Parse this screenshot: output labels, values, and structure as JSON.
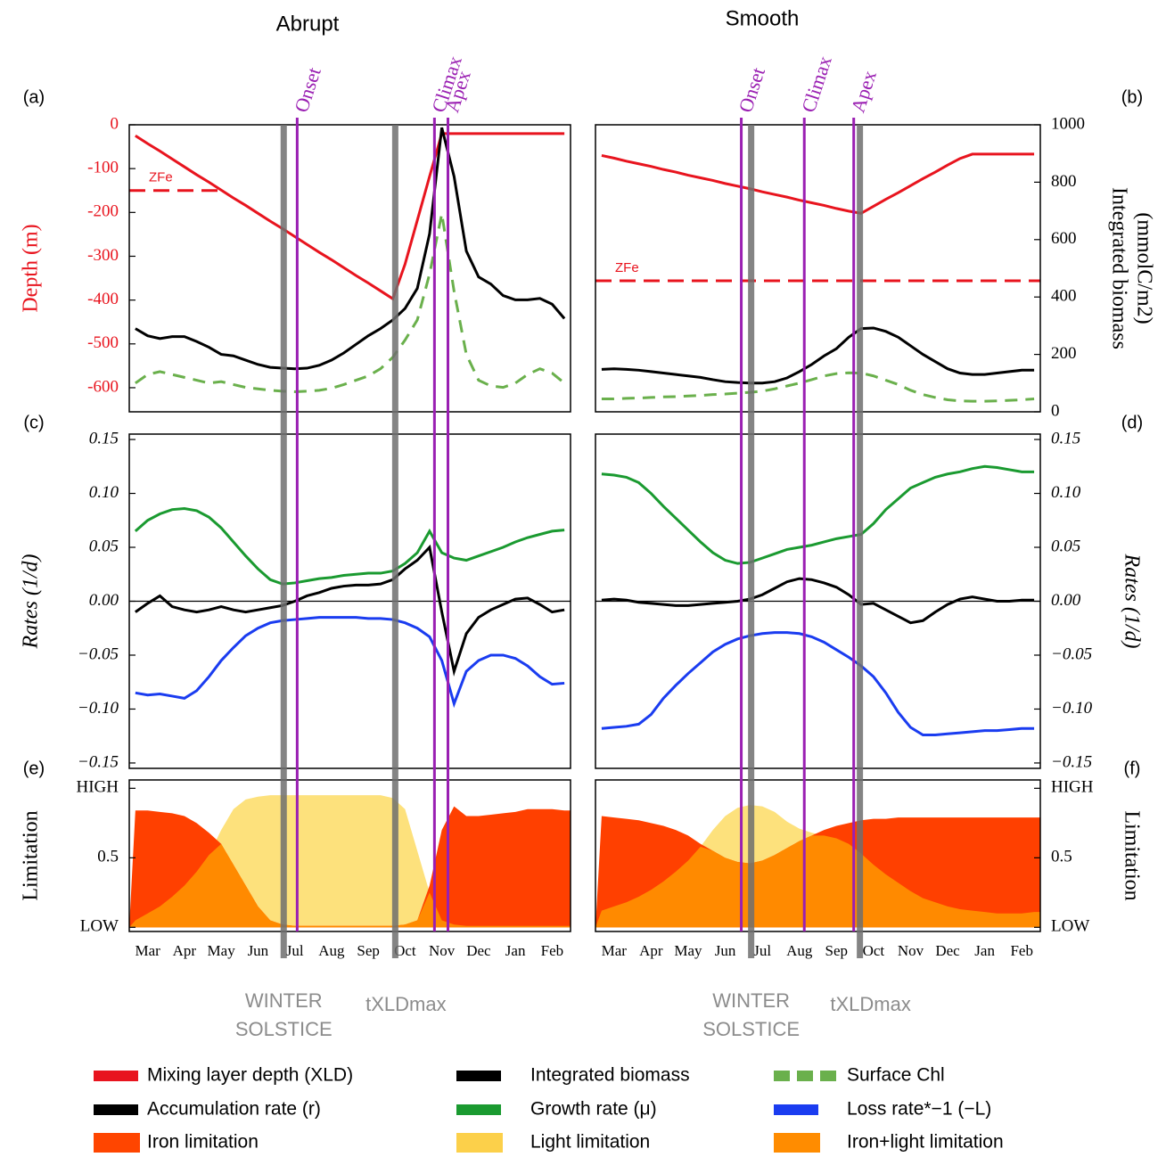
{
  "columns": [
    {
      "title": "Abrupt",
      "events": [
        {
          "label": "Onset",
          "x": 13.2
        },
        {
          "label": "Climax",
          "x": 24.4
        },
        {
          "label": "Apex",
          "x": 25.5
        }
      ],
      "markers": [
        {
          "label": [
            "WINTER",
            "SOLSTICE"
          ],
          "x": 12.1
        },
        {
          "label": [
            "tXLDmax"
          ],
          "x": 21.2
        }
      ]
    },
    {
      "title": "Smooth",
      "events": [
        {
          "label": "Onset",
          "x": 11.3
        },
        {
          "label": "Climax",
          "x": 16.4
        },
        {
          "label": "Apex",
          "x": 20.4
        }
      ],
      "markers": [
        {
          "label": [
            "WINTER",
            "SOLSTICE"
          ],
          "x": 12.1
        },
        {
          "label": [
            "tXLDmax"
          ],
          "x": 20.9
        }
      ]
    }
  ],
  "legend": [
    {
      "label": "Mixing layer depth (XLD)",
      "color": "#e8141e",
      "style": "solid"
    },
    {
      "label": "Integrated biomass",
      "color": "#000000",
      "style": "solid"
    },
    {
      "label": "Surface Chl",
      "color": "#6ab04c",
      "style": "dashed"
    },
    {
      "label": "Accumulation rate (r)",
      "color": "#000000",
      "style": "solid"
    },
    {
      "label": "Growth rate (μ)",
      "color": "#1a9a30",
      "style": "solid"
    },
    {
      "label": "Loss rate*−1 (−L)",
      "color": "#1a3cf0",
      "style": "solid"
    },
    {
      "label": "Iron limitation",
      "color": "#ff4500",
      "style": "area"
    },
    {
      "label": "Light limitation",
      "color": "#fcd04a",
      "style": "area"
    },
    {
      "label": "Iron+light limitation",
      "color": "#ff8c00",
      "style": "area"
    }
  ],
  "chart_data": [
    {
      "type": "line",
      "panel": "(a)",
      "ylabel": [
        "Depth (m)"
      ],
      "label_color": "#e8141e",
      "ylim": [
        -655,
        0
      ],
      "yticks": [
        0,
        -100,
        -200,
        -300,
        -400,
        -500,
        -600
      ],
      "y2lim": [
        0,
        1000
      ],
      "zfe": {
        "label": "ZFe",
        "value": -150,
        "to": 6.8,
        "color": "#e8141e"
      },
      "series": [
        {
          "color": "#e8141e",
          "style": "solid",
          "values": [
            -25,
            -43,
            -60,
            -78,
            -96,
            -114,
            -131,
            -149,
            -167,
            -184,
            -202,
            -220,
            -237,
            -255,
            -273,
            -291,
            -308,
            -326,
            -344,
            -361,
            -379,
            -397,
            -318,
            -218,
            -118,
            -20,
            -20,
            -20,
            -20,
            -20,
            -20,
            -20,
            -20,
            -20,
            -20,
            -20
          ]
        },
        {
          "color": "#000000",
          "style": "solid",
          "axis": "y2",
          "values": [
            290,
            265,
            255,
            262,
            262,
            245,
            225,
            200,
            195,
            180,
            165,
            155,
            152,
            150,
            152,
            162,
            180,
            205,
            235,
            265,
            290,
            320,
            360,
            430,
            620,
            990,
            820,
            560,
            470,
            445,
            405,
            390,
            390,
            395,
            375,
            325
          ]
        },
        {
          "color": "#6ab04c",
          "style": "dashed",
          "axis": "y2",
          "values": [
            100,
            130,
            140,
            130,
            120,
            110,
            100,
            105,
            95,
            85,
            80,
            75,
            72,
            70,
            72,
            75,
            82,
            95,
            110,
            125,
            150,
            190,
            250,
            320,
            480,
            690,
            420,
            200,
            110,
            90,
            85,
            100,
            130,
            150,
            135,
            100
          ]
        }
      ]
    },
    {
      "type": "line",
      "panel": "(b)",
      "y2label": [
        "Integrated biomass",
        "(mmolC/m2)"
      ],
      "ylim": [
        -655,
        0
      ],
      "y2lim": [
        0,
        1000
      ],
      "y2ticks": [
        0,
        200,
        400,
        600,
        800,
        1000
      ],
      "zfe": {
        "label": "ZFe",
        "value": -356,
        "to": 35.5,
        "color": "#e8141e"
      },
      "series": [
        {
          "color": "#e8141e",
          "style": "solid",
          "values": [
            -70,
            -76,
            -83,
            -89,
            -95,
            -102,
            -108,
            -115,
            -121,
            -127,
            -134,
            -140,
            -146,
            -153,
            -159,
            -165,
            -172,
            -178,
            -184,
            -191,
            -197,
            -202,
            -186,
            -170,
            -155,
            -139,
            -123,
            -108,
            -92,
            -77,
            -67,
            -67,
            -67,
            -67,
            -67,
            -67
          ]
        },
        {
          "color": "#000000",
          "style": "solid",
          "axis": "y2",
          "values": [
            148,
            150,
            148,
            145,
            140,
            135,
            130,
            125,
            120,
            112,
            105,
            102,
            100,
            100,
            105,
            118,
            140,
            165,
            195,
            220,
            260,
            290,
            292,
            280,
            260,
            230,
            200,
            175,
            150,
            135,
            130,
            130,
            135,
            140,
            145,
            145
          ]
        },
        {
          "color": "#6ab04c",
          "style": "dashed",
          "axis": "y2",
          "values": [
            45,
            45,
            47,
            48,
            50,
            52,
            53,
            55,
            57,
            60,
            62,
            65,
            68,
            72,
            80,
            90,
            100,
            112,
            125,
            133,
            136,
            135,
            125,
            110,
            95,
            75,
            60,
            50,
            42,
            38,
            37,
            37,
            38,
            40,
            42,
            45
          ]
        }
      ]
    },
    {
      "type": "line",
      "panel": "(c)",
      "ylabel": [
        "Rates (1/d)"
      ],
      "label_style": "italic",
      "zero_line": true,
      "ylim": [
        -0.155,
        0.155
      ],
      "yticks": [
        {
          "value": -0.15,
          "label": "−0.15"
        },
        {
          "value": -0.1,
          "label": "−0.10"
        },
        {
          "value": -0.05,
          "label": "−0.05"
        },
        {
          "value": 0,
          "label": "0.00"
        },
        0.05,
        {
          "value": 0.1,
          "label": "0.10"
        },
        0.15
      ],
      "series": [
        {
          "color": "#1a9a30",
          "style": "solid",
          "values": [
            0.065,
            0.075,
            0.081,
            0.085,
            0.086,
            0.084,
            0.078,
            0.068,
            0.055,
            0.042,
            0.03,
            0.02,
            0.016,
            0.017,
            0.019,
            0.021,
            0.022,
            0.024,
            0.025,
            0.026,
            0.026,
            0.028,
            0.035,
            0.045,
            0.065,
            0.045,
            0.04,
            0.038,
            0.042,
            0.046,
            0.05,
            0.055,
            0.059,
            0.062,
            0.065,
            0.066
          ]
        },
        {
          "color": "#000000",
          "style": "solid",
          "values": [
            -0.01,
            -0.002,
            0.005,
            -0.005,
            -0.008,
            -0.01,
            -0.008,
            -0.005,
            -0.008,
            -0.01,
            -0.008,
            -0.006,
            -0.004,
            0,
            0.005,
            0.008,
            0.012,
            0.014,
            0.015,
            0.015,
            0.016,
            0.02,
            0.03,
            0.038,
            0.05,
            -0.01,
            -0.065,
            -0.03,
            -0.015,
            -0.008,
            -0.003,
            0.002,
            0.003,
            -0.003,
            -0.01,
            -0.008
          ]
        },
        {
          "color": "#1a3cf0",
          "style": "solid",
          "values": [
            -0.085,
            -0.087,
            -0.086,
            -0.088,
            -0.09,
            -0.083,
            -0.07,
            -0.055,
            -0.043,
            -0.032,
            -0.025,
            -0.02,
            -0.018,
            -0.017,
            -0.016,
            -0.015,
            -0.015,
            -0.015,
            -0.015,
            -0.016,
            -0.016,
            -0.017,
            -0.02,
            -0.025,
            -0.033,
            -0.055,
            -0.095,
            -0.065,
            -0.055,
            -0.05,
            -0.05,
            -0.053,
            -0.06,
            -0.07,
            -0.077,
            -0.076
          ]
        }
      ]
    },
    {
      "type": "line",
      "panel": "(d)",
      "ylabel": [
        "Rates (1/d)"
      ],
      "label_style": "italic",
      "yaxis_side": "right",
      "zero_line": true,
      "ylim": [
        -0.155,
        0.155
      ],
      "yticks": [
        {
          "value": -0.15,
          "label": "−0.15"
        },
        {
          "value": -0.1,
          "label": "−0.10"
        },
        {
          "value": -0.05,
          "label": "−0.05"
        },
        {
          "value": 0,
          "label": "0.00"
        },
        0.05,
        {
          "value": 0.1,
          "label": "0.10"
        },
        0.15
      ],
      "series": [
        {
          "color": "#1a9a30",
          "style": "solid",
          "values": [
            0.118,
            0.117,
            0.115,
            0.11,
            0.1,
            0.088,
            0.077,
            0.066,
            0.055,
            0.045,
            0.038,
            0.035,
            0.036,
            0.04,
            0.044,
            0.048,
            0.05,
            0.052,
            0.055,
            0.058,
            0.06,
            0.062,
            0.072,
            0.085,
            0.095,
            0.105,
            0.11,
            0.115,
            0.118,
            0.12,
            0.123,
            0.125,
            0.124,
            0.122,
            0.12,
            0.12
          ]
        },
        {
          "color": "#000000",
          "style": "solid",
          "values": [
            0.001,
            0.002,
            0.001,
            -0.001,
            -0.002,
            -0.003,
            -0.004,
            -0.004,
            -0.003,
            -0.002,
            -0.001,
            0,
            0.002,
            0.006,
            0.012,
            0.018,
            0.021,
            0.02,
            0.017,
            0.013,
            0.006,
            -0.003,
            -0.002,
            -0.008,
            -0.014,
            -0.02,
            -0.018,
            -0.01,
            -0.003,
            0.002,
            0.004,
            0.002,
            0,
            0,
            0.001,
            0.001
          ]
        },
        {
          "color": "#1a3cf0",
          "style": "solid",
          "values": [
            -0.118,
            -0.117,
            -0.116,
            -0.114,
            -0.105,
            -0.09,
            -0.078,
            -0.067,
            -0.057,
            -0.047,
            -0.04,
            -0.035,
            -0.032,
            -0.03,
            -0.029,
            -0.029,
            -0.03,
            -0.033,
            -0.038,
            -0.045,
            -0.052,
            -0.06,
            -0.07,
            -0.085,
            -0.103,
            -0.117,
            -0.124,
            -0.124,
            -0.123,
            -0.122,
            -0.121,
            -0.12,
            -0.12,
            -0.119,
            -0.118,
            -0.118
          ]
        }
      ]
    },
    {
      "type": "area",
      "panel": "(e)",
      "ylabel": [
        "Limitation"
      ],
      "ylim": [
        -0.03,
        1.06
      ],
      "yticks": [
        {
          "value": 0,
          "label": "LOW"
        },
        0.5,
        {
          "value": 1,
          "label": "HIGH"
        }
      ],
      "categories": [
        null,
        "Mar",
        null,
        null,
        "Apr",
        null,
        null,
        "May",
        null,
        null,
        "Jun",
        null,
        null,
        "Jul",
        null,
        null,
        "Aug",
        null,
        null,
        "Sep",
        null,
        null,
        "Oct",
        null,
        null,
        "Nov",
        null,
        null,
        "Dec",
        null,
        null,
        "Jan",
        null,
        null,
        "Feb",
        null
      ],
      "series": [
        {
          "color": "#fde17c",
          "style": "area",
          "values": [
            0.05,
            0.1,
            0.15,
            0.22,
            0.3,
            0.4,
            0.52,
            0.7,
            0.85,
            0.92,
            0.94,
            0.95,
            0.95,
            0.95,
            0.95,
            0.95,
            0.95,
            0.95,
            0.95,
            0.95,
            0.95,
            0.93,
            0.85,
            0.55,
            0.25,
            0.05,
            0.02,
            0.01,
            0.01,
            0.01,
            0.01,
            0.01,
            0.01,
            0.01,
            0.01,
            0.01
          ]
        },
        {
          "color": "#ff4000",
          "style": "area",
          "values": [
            0.84,
            0.84,
            0.83,
            0.82,
            0.8,
            0.75,
            0.68,
            0.6,
            0.45,
            0.3,
            0.15,
            0.05,
            0.02,
            0.01,
            0.01,
            0.01,
            0.01,
            0.01,
            0.01,
            0.01,
            0.01,
            0.01,
            0.02,
            0.05,
            0.3,
            0.7,
            0.87,
            0.8,
            0.8,
            0.81,
            0.82,
            0.83,
            0.85,
            0.85,
            0.85,
            0.84
          ]
        },
        {
          "color": "#ff8a00",
          "style": "area",
          "values": [
            0.05,
            0.1,
            0.15,
            0.22,
            0.3,
            0.4,
            0.52,
            0.6,
            0.45,
            0.3,
            0.15,
            0.05,
            0.02,
            0.01,
            0.01,
            0.01,
            0.01,
            0.01,
            0.01,
            0.01,
            0.01,
            0.01,
            0.02,
            0.05,
            0.25,
            0.05,
            0.02,
            0.01,
            0.01,
            0.01,
            0.01,
            0.01,
            0.01,
            0.01,
            0.01,
            0.01
          ]
        }
      ]
    },
    {
      "type": "area",
      "panel": "(f)",
      "ylabel": [
        "Limitation"
      ],
      "yaxis_side": "right",
      "ylim": [
        -0.03,
        1.06
      ],
      "yticks": [
        {
          "value": 0,
          "label": "LOW"
        },
        0.5,
        {
          "value": 1,
          "label": "HIGH"
        }
      ],
      "categories": [
        null,
        "Mar",
        null,
        null,
        "Apr",
        null,
        null,
        "May",
        null,
        null,
        "Jun",
        null,
        null,
        "Jul",
        null,
        null,
        "Aug",
        null,
        null,
        "Sep",
        null,
        null,
        "Oct",
        null,
        null,
        "Nov",
        null,
        null,
        "Dec",
        null,
        null,
        "Jan",
        null,
        null,
        "Feb",
        null
      ],
      "series": [
        {
          "color": "#fde17c",
          "style": "area",
          "values": [
            0.12,
            0.15,
            0.18,
            0.22,
            0.27,
            0.33,
            0.4,
            0.48,
            0.58,
            0.7,
            0.8,
            0.86,
            0.88,
            0.87,
            0.83,
            0.76,
            0.71,
            0.68,
            0.66,
            0.64,
            0.6,
            0.53,
            0.45,
            0.38,
            0.32,
            0.26,
            0.21,
            0.18,
            0.15,
            0.13,
            0.12,
            0.11,
            0.1,
            0.1,
            0.1,
            0.11
          ]
        },
        {
          "color": "#ff4000",
          "style": "area",
          "values": [
            0.8,
            0.79,
            0.78,
            0.77,
            0.75,
            0.73,
            0.7,
            0.66,
            0.6,
            0.55,
            0.5,
            0.47,
            0.46,
            0.48,
            0.52,
            0.57,
            0.62,
            0.66,
            0.7,
            0.73,
            0.75,
            0.77,
            0.78,
            0.78,
            0.79,
            0.79,
            0.79,
            0.79,
            0.79,
            0.79,
            0.79,
            0.79,
            0.79,
            0.79,
            0.79,
            0.79
          ]
        },
        {
          "color": "#ff8a00",
          "style": "area",
          "values": [
            0.12,
            0.15,
            0.18,
            0.22,
            0.27,
            0.33,
            0.4,
            0.48,
            0.58,
            0.55,
            0.5,
            0.47,
            0.46,
            0.48,
            0.52,
            0.57,
            0.62,
            0.66,
            0.66,
            0.64,
            0.6,
            0.53,
            0.45,
            0.38,
            0.32,
            0.26,
            0.21,
            0.18,
            0.15,
            0.13,
            0.12,
            0.11,
            0.1,
            0.1,
            0.1,
            0.11
          ]
        }
      ]
    }
  ]
}
